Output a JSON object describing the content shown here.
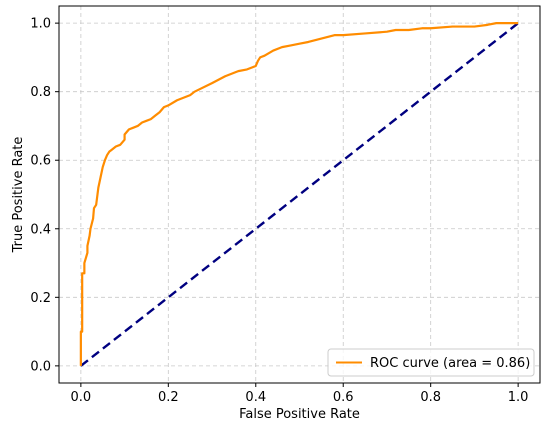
{
  "chart_data": {
    "type": "line",
    "title": "",
    "xlabel": "False Positive Rate",
    "ylabel": "True Positive Rate",
    "xlim": [
      -0.05,
      1.05
    ],
    "ylim": [
      -0.05,
      1.05
    ],
    "xticks": [
      0.0,
      0.2,
      0.4,
      0.6,
      0.8,
      1.0
    ],
    "xtick_labels": [
      "0.0",
      "0.2",
      "0.4",
      "0.6",
      "0.8",
      "1.0"
    ],
    "yticks": [
      0.0,
      0.2,
      0.4,
      0.6,
      0.8,
      1.0
    ],
    "ytick_labels": [
      "0.0",
      "0.2",
      "0.4",
      "0.6",
      "0.8",
      "1.0"
    ],
    "grid": true,
    "legend_position": "lower-right",
    "series": [
      {
        "name": "ROC curve (area = 0.86)",
        "color": "#ff8c00",
        "style": "solid",
        "x": [
          0.0,
          0.0,
          0.003,
          0.003,
          0.008,
          0.008,
          0.015,
          0.015,
          0.02,
          0.022,
          0.028,
          0.03,
          0.035,
          0.038,
          0.04,
          0.045,
          0.05,
          0.055,
          0.06,
          0.065,
          0.07,
          0.075,
          0.08,
          0.09,
          0.1,
          0.1,
          0.11,
          0.12,
          0.13,
          0.14,
          0.15,
          0.16,
          0.17,
          0.18,
          0.19,
          0.2,
          0.22,
          0.25,
          0.26,
          0.3,
          0.33,
          0.36,
          0.38,
          0.4,
          0.405,
          0.41,
          0.42,
          0.44,
          0.46,
          0.48,
          0.5,
          0.52,
          0.55,
          0.58,
          0.6,
          0.65,
          0.7,
          0.72,
          0.75,
          0.78,
          0.8,
          0.85,
          0.9,
          0.93,
          0.95,
          1.0
        ],
        "y": [
          0.0,
          0.1,
          0.1,
          0.27,
          0.27,
          0.3,
          0.33,
          0.35,
          0.38,
          0.4,
          0.43,
          0.46,
          0.47,
          0.5,
          0.52,
          0.55,
          0.58,
          0.6,
          0.615,
          0.625,
          0.63,
          0.635,
          0.64,
          0.645,
          0.66,
          0.675,
          0.69,
          0.695,
          0.7,
          0.71,
          0.715,
          0.72,
          0.73,
          0.74,
          0.755,
          0.76,
          0.775,
          0.79,
          0.8,
          0.825,
          0.845,
          0.86,
          0.865,
          0.875,
          0.89,
          0.9,
          0.905,
          0.92,
          0.93,
          0.935,
          0.94,
          0.945,
          0.955,
          0.965,
          0.965,
          0.97,
          0.975,
          0.98,
          0.98,
          0.985,
          0.985,
          0.99,
          0.99,
          0.995,
          1.0,
          1.0
        ]
      },
      {
        "name": "",
        "color": "#000080",
        "style": "dashed",
        "x": [
          0.0,
          1.0
        ],
        "y": [
          0.0,
          1.0
        ]
      }
    ]
  }
}
